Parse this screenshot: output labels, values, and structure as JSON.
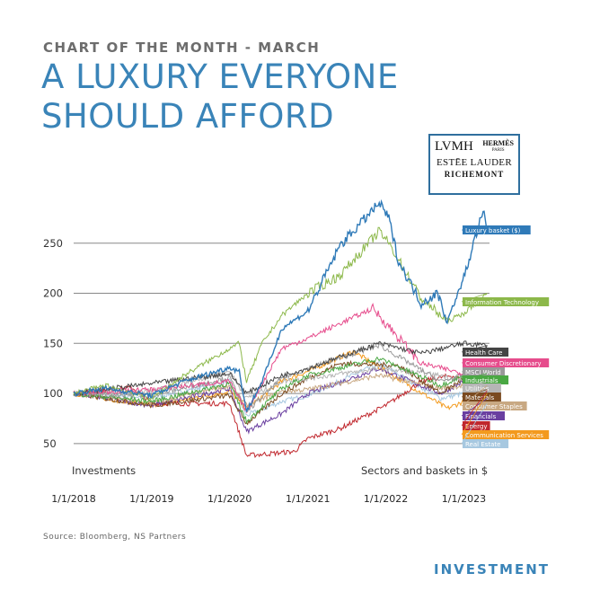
{
  "header": {
    "kicker": "CHART OF THE MONTH - MARCH",
    "title_line1": "A LUXURY EVERYONE",
    "title_line2": "SHOULD AFFORD"
  },
  "logos": {
    "lvmh": "LVMH",
    "hermes": "HERMÈS",
    "hermes_sub": "PARIS",
    "lauder": "ESTĒE LAUDER",
    "richemont": "RICHEMONT",
    "border_color": "#2f6f9e"
  },
  "captions": {
    "left": "Investments",
    "right": "Sectors and baskets in $"
  },
  "source": "Source: Bloomberg, NS Partners",
  "footer": "INVESTMENT",
  "chart_data": {
    "type": "line",
    "title": "A LUXURY EVERYONE SHOULD AFFORD",
    "ylim": [
      40,
      300
    ],
    "yticks": [
      50,
      100,
      150,
      200,
      250
    ],
    "xlim": [
      "2018-01-01",
      "2023-05-01"
    ],
    "xticks": [
      "2018-01-01",
      "2019-01-01",
      "2020-01-01",
      "2021-01-01",
      "2022-01-01",
      "2023-01-01"
    ],
    "xtick_labels": [
      "1/1/2018",
      "1/1/2019",
      "1/1/2020",
      "1/1/2021",
      "1/1/2022",
      "1/1/2023"
    ],
    "grid": "horizontal",
    "legend": "labels at right end of lines",
    "series": [
      {
        "name": "Luxury basket ($)",
        "color": "#2f7ab8",
        "x": [
          "2018-01-01",
          "2018-06-01",
          "2019-01-01",
          "2019-06-01",
          "2020-01-01",
          "2020-02-15",
          "2020-03-20",
          "2020-06-01",
          "2020-09-01",
          "2021-01-01",
          "2021-06-01",
          "2021-08-01",
          "2021-12-01",
          "2022-01-15",
          "2022-03-01",
          "2022-06-15",
          "2022-09-01",
          "2022-10-15",
          "2023-01-01",
          "2023-03-01",
          "2023-04-01",
          "2023-04-20"
        ],
        "y": [
          100,
          105,
          98,
          112,
          126,
          122,
          82,
          112,
          165,
          182,
          248,
          262,
          290,
          275,
          232,
          190,
          200,
          172,
          215,
          260,
          282,
          262
        ]
      },
      {
        "name": "Information Technology",
        "color": "#8cb84a",
        "x": [
          "2018-01-01",
          "2018-06-01",
          "2019-01-01",
          "2019-06-01",
          "2020-01-01",
          "2020-02-15",
          "2020-03-20",
          "2020-06-01",
          "2020-09-01",
          "2021-01-01",
          "2021-06-01",
          "2021-12-01",
          "2022-01-15",
          "2022-06-15",
          "2022-10-15",
          "2023-01-01",
          "2023-04-20"
        ],
        "y": [
          100,
          108,
          95,
          118,
          145,
          150,
          112,
          150,
          178,
          200,
          218,
          262,
          250,
          195,
          172,
          180,
          200
        ]
      },
      {
        "name": "Health Care",
        "color": "#444444",
        "x": [
          "2018-01-01",
          "2019-01-01",
          "2020-01-01",
          "2020-03-20",
          "2020-09-01",
          "2021-01-01",
          "2021-12-01",
          "2022-06-15",
          "2023-01-01",
          "2023-04-20"
        ],
        "y": [
          100,
          110,
          120,
          100,
          118,
          125,
          150,
          140,
          150,
          148
        ]
      },
      {
        "name": "Consumer Discretionary",
        "color": "#e64c8c",
        "x": [
          "2018-01-01",
          "2019-01-01",
          "2020-01-01",
          "2020-03-20",
          "2020-09-01",
          "2021-01-01",
          "2021-11-01",
          "2022-06-15",
          "2023-01-01",
          "2023-04-20"
        ],
        "y": [
          100,
          104,
          112,
          82,
          145,
          155,
          185,
          130,
          120,
          134
        ]
      },
      {
        "name": "MSCI World",
        "color": "#999999",
        "x": [
          "2018-01-01",
          "2019-01-01",
          "2020-01-01",
          "2020-03-20",
          "2020-09-01",
          "2021-01-01",
          "2021-12-01",
          "2022-09-15",
          "2023-01-01",
          "2023-04-20"
        ],
        "y": [
          100,
          98,
          116,
          82,
          115,
          125,
          148,
          112,
          118,
          124
        ]
      },
      {
        "name": "Industrials",
        "color": "#4aa843",
        "x": [
          "2018-01-01",
          "2019-01-01",
          "2020-01-01",
          "2020-03-20",
          "2020-09-01",
          "2021-01-01",
          "2021-12-01",
          "2022-09-15",
          "2023-01-01",
          "2023-04-20"
        ],
        "y": [
          100,
          92,
          110,
          72,
          105,
          118,
          135,
          108,
          118,
          120
        ]
      },
      {
        "name": "Utilities",
        "color": "#b5b5b5",
        "x": [
          "2018-01-01",
          "2019-01-01",
          "2020-01-01",
          "2020-03-20",
          "2020-09-01",
          "2021-01-01",
          "2021-12-01",
          "2022-09-15",
          "2023-01-01",
          "2023-04-20"
        ],
        "y": [
          100,
          102,
          122,
          95,
          112,
          115,
          125,
          118,
          112,
          112
        ]
      },
      {
        "name": "Materials",
        "color": "#7a4a20",
        "x": [
          "2018-01-01",
          "2019-01-01",
          "2020-01-01",
          "2020-03-20",
          "2020-09-01",
          "2021-01-01",
          "2021-06-01",
          "2022-03-01",
          "2022-09-15",
          "2023-01-01",
          "2023-04-20"
        ],
        "y": [
          100,
          88,
          98,
          70,
          100,
          115,
          130,
          128,
          100,
          115,
          104
        ]
      },
      {
        "name": "Consumer Staples",
        "color": "#c8a882",
        "x": [
          "2018-01-01",
          "2019-01-01",
          "2020-01-01",
          "2020-03-20",
          "2020-09-01",
          "2021-01-01",
          "2021-12-01",
          "2022-09-15",
          "2023-01-01",
          "2023-04-20"
        ],
        "y": [
          100,
          90,
          108,
          88,
          102,
          104,
          118,
          105,
          108,
          108
        ]
      },
      {
        "name": "Financials",
        "color": "#6a3fa0",
        "x": [
          "2018-01-01",
          "2019-01-01",
          "2020-01-01",
          "2020-03-20",
          "2020-09-01",
          "2021-01-01",
          "2021-12-01",
          "2022-09-15",
          "2023-01-01",
          "2023-04-20"
        ],
        "y": [
          100,
          88,
          105,
          62,
          80,
          100,
          125,
          100,
          112,
          95
        ]
      },
      {
        "name": "Energy",
        "color": "#c0272d",
        "x": [
          "2018-01-01",
          "2018-10-01",
          "2019-01-01",
          "2020-01-01",
          "2020-03-20",
          "2020-10-30",
          "2021-01-01",
          "2021-06-01",
          "2022-01-01",
          "2022-06-15",
          "2022-11-01",
          "2023-04-20"
        ],
        "y": [
          100,
          106,
          90,
          90,
          38,
          42,
          55,
          65,
          88,
          112,
          118,
          103
        ]
      },
      {
        "name": "Communication Services",
        "color": "#f39a1e",
        "x": [
          "2018-01-01",
          "2019-01-01",
          "2020-01-01",
          "2020-03-20",
          "2020-09-01",
          "2021-01-01",
          "2021-08-01",
          "2022-10-15",
          "2023-01-01",
          "2023-04-20"
        ],
        "y": [
          100,
          88,
          102,
          85,
          112,
          122,
          142,
          85,
          92,
          100
        ]
      },
      {
        "name": "Real Estate",
        "color": "#a7c8e0",
        "x": [
          "2018-01-01",
          "2019-01-01",
          "2020-01-01",
          "2020-03-20",
          "2020-09-01",
          "2021-01-01",
          "2021-12-01",
          "2022-09-15",
          "2023-01-01",
          "2023-04-20"
        ],
        "y": [
          100,
          96,
          112,
          78,
          92,
          98,
          130,
          95,
          100,
          90
        ]
      }
    ]
  }
}
